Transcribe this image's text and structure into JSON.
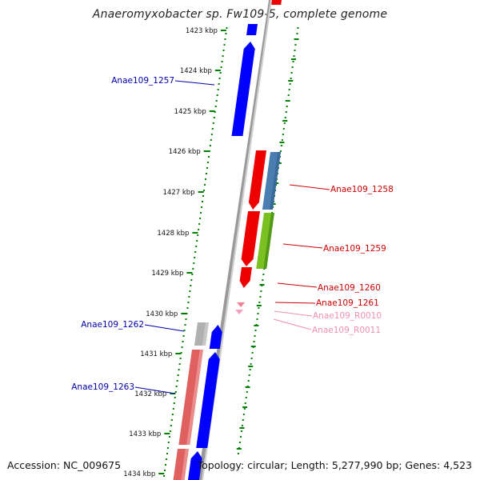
{
  "title": "Anaeromyxobacter sp. Fw109-5, complete genome",
  "accession": "Accession: NC_009675",
  "summary": "Topology: circular; Length: 5,277,990 bp; Genes: 4,523",
  "ruler": {
    "ticks": [
      "1423 kbp",
      "1424 kbp",
      "1425 kbp",
      "1426 kbp",
      "1427 kbp",
      "1428 kbp",
      "1429 kbp",
      "1430 kbp",
      "1431 kbp",
      "1432 kbp",
      "1433 kbp",
      "1434 kbp"
    ]
  },
  "colors": {
    "forward_cds": "#0000ff",
    "reverse_cds": "#ee0000",
    "pseudo": "#b0b0b0",
    "rna": "#f08090",
    "tick": "#008000",
    "backbone": "#999999"
  },
  "genes": [
    {
      "id": "Anae109_1257",
      "label": "Anae109_1257",
      "color": "#0000aa"
    },
    {
      "id": "Anae109_1258",
      "label": "Anae109_1258",
      "color": "#cc0000"
    },
    {
      "id": "Anae109_1259",
      "label": "Anae109_1259",
      "color": "#cc0000"
    },
    {
      "id": "Anae109_1260",
      "label": "Anae109_1260",
      "color": "#cc0000"
    },
    {
      "id": "Anae109_1261",
      "label": "Anae109_1261",
      "color": "#cc0000"
    },
    {
      "id": "Anae109_R0010",
      "label": "Anae109_R0010",
      "color": "#f090b0"
    },
    {
      "id": "Anae109_R0011",
      "label": "Anae109_R0011",
      "color": "#f090b0"
    },
    {
      "id": "Anae109_1262",
      "label": "Anae109_1262",
      "color": "#0000aa"
    },
    {
      "id": "Anae109_1263",
      "label": "Anae109_1263",
      "color": "#0000aa"
    }
  ]
}
